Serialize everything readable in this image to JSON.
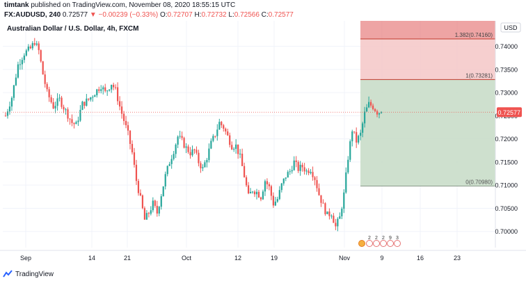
{
  "header": {
    "author": "timtank",
    "published_text": "published on TradingView.com, November 08, 2020 18:55:15 UTC",
    "symbol": "FX:AUDUSD, 240",
    "last_price": "0.72577",
    "change_text": "−0.00239 (−0.33%)",
    "o_label": "O:",
    "o_value": "0.72707",
    "h_label": "H:",
    "h_value": "0.72732",
    "l_label": "L:",
    "l_value": "0.72566",
    "c_label": "C:",
    "c_value": "0.72577"
  },
  "footer": {
    "brand": "TradingView"
  },
  "colors": {
    "up": "#26a69a",
    "down": "#ef5350",
    "fib_top": "#e57373",
    "fib_mid": "#f4c7c7",
    "fib_low": "#c9ddc9",
    "price_tag": "#ef5350"
  },
  "chart_data": {
    "type": "candlestick",
    "title": "Australian Dollar / U.S. Dollar, 4h, FXCM",
    "currency": "USD",
    "y_ticks": [
      "0.74000",
      "0.73500",
      "0.73000",
      "0.72500",
      "0.72000",
      "0.71500",
      "0.71000",
      "0.70500",
      "0.70000"
    ],
    "y_tick_values": [
      0.74,
      0.735,
      0.73,
      0.725,
      0.72,
      0.715,
      0.71,
      0.705,
      0.7
    ],
    "ylim": [
      0.6965,
      0.7455
    ],
    "x_ticks": [
      "Sep",
      "14",
      "21",
      "Oct",
      "12",
      "19",
      "Nov",
      "9",
      "16",
      "23"
    ],
    "last_price_label": "0.72577",
    "last_price": 0.72577,
    "fib_levels": [
      {
        "label": "1.382(0.74160)",
        "value": 0.7416
      },
      {
        "label": "1(0.73281)",
        "value": 0.73281
      },
      {
        "label": "0(0.70980)",
        "value": 0.7098
      }
    ],
    "event_markers": [
      "2",
      "2",
      "2",
      "9",
      "3"
    ],
    "path_points": [
      [
        0,
        0.725
      ],
      [
        3,
        0.729
      ],
      [
        6,
        0.736
      ],
      [
        9,
        0.7385
      ],
      [
        12,
        0.7395
      ],
      [
        14,
        0.741
      ],
      [
        16,
        0.739
      ],
      [
        18,
        0.734
      ],
      [
        20,
        0.73
      ],
      [
        23,
        0.727
      ],
      [
        26,
        0.7285
      ],
      [
        29,
        0.726
      ],
      [
        32,
        0.7235
      ],
      [
        34,
        0.723
      ],
      [
        37,
        0.7275
      ],
      [
        40,
        0.7285
      ],
      [
        43,
        0.73
      ],
      [
        46,
        0.7315
      ],
      [
        48,
        0.73
      ],
      [
        51,
        0.732
      ],
      [
        53,
        0.7305
      ],
      [
        55,
        0.727
      ],
      [
        57,
        0.724
      ],
      [
        59,
        0.721
      ],
      [
        61,
        0.717
      ],
      [
        63,
        0.711
      ],
      [
        65,
        0.707
      ],
      [
        67,
        0.7025
      ],
      [
        69,
        0.704
      ],
      [
        71,
        0.706
      ],
      [
        73,
        0.704
      ],
      [
        75,
        0.708
      ],
      [
        77,
        0.712
      ],
      [
        79,
        0.715
      ],
      [
        81,
        0.7175
      ],
      [
        83,
        0.7205
      ],
      [
        85,
        0.7195
      ],
      [
        87,
        0.718
      ],
      [
        89,
        0.717
      ],
      [
        91,
        0.7175
      ],
      [
        93,
        0.715
      ],
      [
        95,
        0.7135
      ],
      [
        97,
        0.716
      ],
      [
        99,
        0.719
      ],
      [
        101,
        0.721
      ],
      [
        103,
        0.7235
      ],
      [
        105,
        0.7225
      ],
      [
        107,
        0.7205
      ],
      [
        109,
        0.7185
      ],
      [
        111,
        0.7185
      ],
      [
        113,
        0.716
      ],
      [
        115,
        0.712
      ],
      [
        117,
        0.7075
      ],
      [
        119,
        0.709
      ],
      [
        121,
        0.7085
      ],
      [
        123,
        0.7075
      ],
      [
        125,
        0.711
      ],
      [
        127,
        0.7095
      ],
      [
        129,
        0.706
      ],
      [
        131,
        0.707
      ],
      [
        133,
        0.71
      ],
      [
        135,
        0.712
      ],
      [
        137,
        0.713
      ],
      [
        139,
        0.715
      ],
      [
        141,
        0.7135
      ],
      [
        143,
        0.714
      ],
      [
        145,
        0.713
      ],
      [
        147,
        0.7135
      ],
      [
        149,
        0.7115
      ],
      [
        151,
        0.708
      ],
      [
        153,
        0.7055
      ],
      [
        155,
        0.7035
      ],
      [
        157,
        0.704
      ],
      [
        159,
        0.701
      ],
      [
        161,
        0.703
      ],
      [
        163,
        0.708
      ],
      [
        165,
        0.716
      ],
      [
        167,
        0.722
      ],
      [
        169,
        0.7195
      ],
      [
        171,
        0.721
      ],
      [
        173,
        0.7255
      ],
      [
        175,
        0.7275
      ],
      [
        177,
        0.727
      ],
      [
        179,
        0.7258
      ]
    ]
  }
}
